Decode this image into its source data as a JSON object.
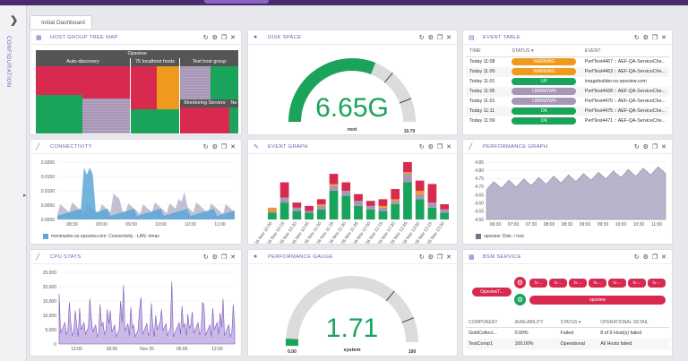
{
  "sidebar": {
    "label": "CONFIGURATION"
  },
  "dashboard_tab": {
    "label": "Initial Dashboard"
  },
  "colors": {
    "green": "#1aa35a",
    "red": "#d8294f",
    "orange": "#ef9a1c",
    "mauve": "#a896b6",
    "purple": "#7a56b8"
  },
  "widgets": {
    "host_tree": {
      "title": "HOST GROUP TREE MAP",
      "root": "Opsview",
      "groups": [
        "Auto-discovery",
        "75 localhost hosts",
        "Test host group",
        "Monitoring Servers",
        "Ne"
      ]
    },
    "disk": {
      "title": "DISK SPACE",
      "value": "6.65G",
      "label": "root",
      "max": "10.70",
      "fraction": 0.62
    },
    "event_table": {
      "title": "EVENT TABLE",
      "headers": [
        "TIME",
        "STATUS ▾",
        "EVENT"
      ],
      "rows": [
        {
          "time": "Today 11:08",
          "status": "WARNING",
          "color": "#ef9a1c",
          "event": "PerfTest4467 :: AEF-QA-ServiceChe..."
        },
        {
          "time": "Today 11:00",
          "status": "WARNING",
          "color": "#ef9a1c",
          "event": "PerfTest4463 :: AEF-QA-ServiceChe..."
        },
        {
          "time": "Today 11:01",
          "status": "UP",
          "color": "#1aa35a",
          "event": "imagebuilder.os.opsview.com"
        },
        {
          "time": "Today 11:05",
          "status": "UNKNOWN",
          "color": "#a896b6",
          "event": "PerfTest4428 :: AEF-QA-ServiceChe..."
        },
        {
          "time": "Today 11:01",
          "status": "UNKNOWN",
          "color": "#a896b6",
          "event": "PerfTest4470 :: AEF-QA-ServiceChe..."
        },
        {
          "time": "Today 11:11",
          "status": "OK",
          "color": "#1aa35a",
          "event": "PerfTest4475 :: AEF-QA-ServiceChe..."
        },
        {
          "time": "Today 11:09",
          "status": "OK",
          "color": "#1aa35a",
          "event": "PerfTest4471 :: AEF-QA-ServiceChe..."
        }
      ]
    },
    "connectivity": {
      "title": "CONNECTIVITY",
      "legend": "monmaster.os.opsview.com: Connectivity - LAN: rtmax"
    },
    "event_graph": {
      "title": "EVENT GRAPH"
    },
    "performance_graph": {
      "title": "PERFORMANCE GRAPH",
      "legend": "opsview: Disk: / root"
    },
    "cpu": {
      "title": "CPU STATS"
    },
    "perf_gauge": {
      "title": "PERFORMANCE GAUGE",
      "value": "1.71",
      "label": "system",
      "min": "0.00",
      "max": "100",
      "fraction": 0.0171
    },
    "bsm": {
      "title": "BSM SERVICE",
      "node_label": "OpsviewT...",
      "small_nodes": [
        "fo-...",
        "fo-...",
        "fo-...",
        "fo-...",
        "fo-...",
        "fo-...",
        "fo-..."
      ],
      "service": "opsview",
      "headers": [
        "COMPONENT",
        "AVAILABILITY",
        "STATUS ▾",
        "OPERATIONAL DETAIL"
      ],
      "rows": [
        {
          "component": "GoldCollect...",
          "availability": "0.00%",
          "status": "Failed",
          "detail": "8 of 9 Host(s) failed"
        },
        {
          "component": "TestComp1",
          "availability": "100.00%",
          "status": "Operational",
          "detail": "All Hosts failed"
        }
      ]
    }
  },
  "chart_data": [
    {
      "id": "connectivity",
      "type": "area",
      "x": [
        "08:30",
        "09:00",
        "09:30",
        "10:00",
        "10:30",
        "11:00"
      ],
      "yticks": [
        "0.0000",
        "0.0050",
        "0.0100",
        "0.0150",
        "0.0200"
      ],
      "ylim": [
        0,
        0.02
      ],
      "series": [
        {
          "name": "monmaster.os.opsview.com: Connectivity - LAN: rtmax"
        }
      ]
    },
    {
      "id": "event_graph",
      "type": "bar",
      "categories": [
        "26 Nov 10:00",
        "26 Nov 10:15",
        "26 Nov 10:30",
        "26 Nov 10:45",
        "26 Nov 11:00",
        "26 Nov 11:15",
        "26 Nov 11:30",
        "26 Nov 11:45",
        "26 Nov 12:00",
        "26 Nov 12:15",
        "26 Nov 12:30",
        "26 Nov 12:45",
        "26 Nov 13:00",
        "26 Nov 13:15",
        "26 Nov 13:30"
      ],
      "stacks": [
        [
          4,
          1,
          2,
          0
        ],
        [
          10,
          3,
          0,
          9
        ],
        [
          5,
          2,
          0,
          3
        ],
        [
          4,
          1,
          0,
          3
        ],
        [
          6,
          2,
          1,
          3
        ],
        [
          17,
          3,
          1,
          6
        ],
        [
          14,
          3,
          0,
          5
        ],
        [
          8,
          3,
          0,
          4
        ],
        [
          6,
          2,
          0,
          3
        ],
        [
          5,
          2,
          1,
          4
        ],
        [
          9,
          2,
          1,
          6
        ],
        [
          22,
          5,
          1,
          6
        ],
        [
          12,
          3,
          2,
          6
        ],
        [
          7,
          3,
          0,
          11
        ],
        [
          4,
          2,
          0,
          3
        ]
      ],
      "stack_colors": [
        "#1aa35a",
        "#a896b6",
        "#ef9a1c",
        "#d8294f"
      ]
    },
    {
      "id": "performance_graph",
      "type": "area",
      "x": [
        "06:30",
        "07:00",
        "07:30",
        "08:00",
        "08:30",
        "09:00",
        "09:30",
        "10:00",
        "10:30",
        "11:00"
      ],
      "yticks": [
        "4.50",
        "4.55",
        "4.60",
        "4.65",
        "4.70",
        "4.75",
        "4.80",
        "4.85"
      ],
      "ylim": [
        4.5,
        4.85
      ],
      "series": [
        {
          "name": "opsview: Disk: / root"
        }
      ]
    },
    {
      "id": "cpu",
      "type": "line",
      "x": [
        "12:00",
        "18:00",
        "Nov 26",
        "06:00",
        "12:00"
      ],
      "yticks": [
        "0",
        "5,000",
        "10,000",
        "15,000",
        "20,000",
        "25,000"
      ],
      "ylim": [
        0,
        25000
      ]
    }
  ]
}
